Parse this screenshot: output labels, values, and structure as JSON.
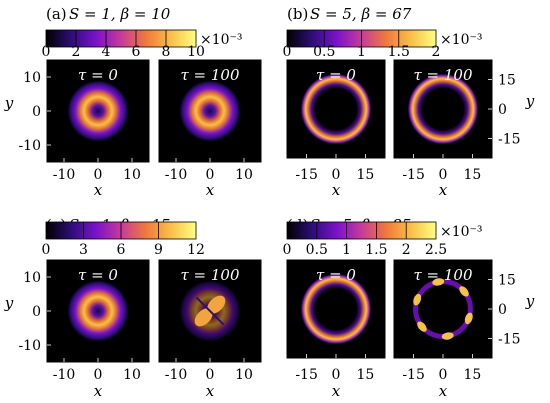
{
  "colors": {
    "colormap": [
      "#000000",
      "#2c0e76",
      "#7a12c9",
      "#c63b9a",
      "#ef7a3b",
      "#f8c04a",
      "#ffff7f"
    ],
    "panel_background": "#000000",
    "text_on_panel": "#ffffff"
  },
  "chart_data": [
    {
      "type": "heatmap",
      "label": "(a)",
      "params_text": "S = 1, β = 10",
      "S": 1,
      "beta": 10,
      "colorbar": {
        "min": 0,
        "max": 10,
        "ticks": [
          "0",
          "2",
          "4",
          "6",
          "8",
          "10"
        ],
        "multiplier": "×10⁻³"
      },
      "xlabel": "x",
      "ylabel": "y",
      "xticks": [
        "-10",
        "0",
        "10"
      ],
      "yticks": [
        "10",
        "0",
        "-10"
      ],
      "subplots": [
        {
          "title": "τ = 0",
          "tau": 0,
          "pattern": "ring",
          "ring_radius": 4,
          "vortex_core": true
        },
        {
          "title": "τ = 100",
          "tau": 100,
          "pattern": "ring",
          "ring_radius": 4,
          "vortex_core": true
        }
      ]
    },
    {
      "type": "heatmap",
      "label": "(b)",
      "params_text": "S = 5, β = 67",
      "S": 5,
      "beta": 67,
      "colorbar": {
        "min": 0,
        "max": 2,
        "ticks": [
          "0",
          "0.5",
          "1",
          "1.5",
          "2"
        ],
        "multiplier": "×10⁻³"
      },
      "xlabel": "x",
      "ylabel": "y",
      "xticks": [
        "-15",
        "0",
        "15"
      ],
      "yticks": [
        "15",
        "0",
        "-15"
      ],
      "subplots": [
        {
          "title": "τ = 0",
          "tau": 0,
          "pattern": "ring",
          "ring_radius": 14
        },
        {
          "title": "τ = 100",
          "tau": 100,
          "pattern": "ring",
          "ring_radius": 14
        }
      ]
    },
    {
      "type": "heatmap",
      "label": "(c)",
      "params_text": "S = 1, β = 15",
      "S": 1,
      "beta": 15,
      "colorbar": {
        "min": 0,
        "max": 12,
        "ticks": [
          "0",
          "3",
          "6",
          "9",
          "12"
        ],
        "multiplier": ""
      },
      "xlabel": "x",
      "ylabel": "y",
      "xticks": [
        "-10",
        "0",
        "10"
      ],
      "yticks": [
        "10",
        "0",
        "-10"
      ],
      "subplots": [
        {
          "title": "τ = 0",
          "tau": 0,
          "pattern": "ring",
          "ring_radius": 4,
          "vortex_core": true
        },
        {
          "title": "τ = 100",
          "tau": 100,
          "pattern": "split",
          "fragments": 2
        }
      ]
    },
    {
      "type": "heatmap",
      "label": "(d)",
      "params_text": "S = 5, β = 85",
      "S": 5,
      "beta": 85,
      "colorbar": {
        "min": 0,
        "max": 2.5,
        "ticks": [
          "0",
          "0.5",
          "1",
          "1.5",
          "2",
          "2.5"
        ],
        "multiplier": "×10⁻³"
      },
      "xlabel": "x",
      "ylabel": "y",
      "xticks": [
        "-15",
        "0",
        "15"
      ],
      "yticks": [
        "15",
        "0",
        "-15"
      ],
      "subplots": [
        {
          "title": "τ = 0",
          "tau": 0,
          "pattern": "ring",
          "ring_radius": 14
        },
        {
          "title": "τ = 100",
          "tau": 100,
          "pattern": "ring-fragments",
          "ring_radius": 14,
          "fragments": 6
        }
      ]
    }
  ]
}
